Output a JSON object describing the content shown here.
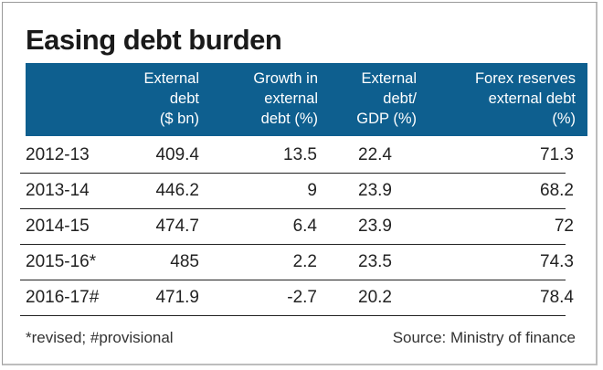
{
  "chart_data": {
    "type": "table",
    "title": "Easing debt burden",
    "columns": [
      "",
      "External debt ($ bn)",
      "Growth in external debt (%)",
      "External debt/ GDP (%)",
      "Forex reserves external debt (%)"
    ],
    "header_lines": [
      [],
      [
        "External",
        "debt",
        "($ bn)"
      ],
      [
        "Growth in",
        "external",
        "debt (%)"
      ],
      [
        "External",
        "debt/",
        "GDP (%)"
      ],
      [
        "Forex reserves",
        "external debt",
        "(%)"
      ]
    ],
    "rows": [
      {
        "year": "2012-13",
        "values": [
          "409.4",
          "13.5",
          "22.4",
          "71.3"
        ]
      },
      {
        "year": "2013-14",
        "values": [
          "446.2",
          "9",
          "23.9",
          "68.2"
        ]
      },
      {
        "year": "2014-15",
        "values": [
          "474.7",
          "6.4",
          "23.9",
          "72"
        ]
      },
      {
        "year": "2015-16*",
        "values": [
          "485",
          "2.2",
          "23.5",
          "74.3"
        ]
      },
      {
        "year": "2016-17#",
        "values": [
          "471.9",
          "-2.7",
          "20.2",
          "78.4"
        ]
      }
    ],
    "footnote": "*revised; #provisional",
    "source": "Source: Ministry of finance"
  },
  "colors": {
    "header_bg": "#0e5f8f",
    "header_text": "#ffffff",
    "text": "#222222"
  }
}
